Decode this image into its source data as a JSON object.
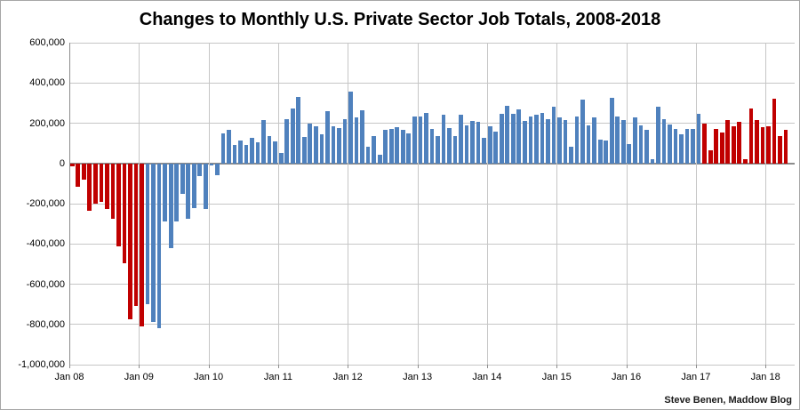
{
  "page": {
    "credit": "Steve Benen, Maddow Blog"
  },
  "chart_data": {
    "type": "bar",
    "title": "Changes to Monthly U.S. Private Sector Job Totals, 2008-2018",
    "xlabel": "",
    "ylabel": "",
    "ylim": [
      -1000000,
      600000
    ],
    "y_tick_step": 200000,
    "grid": true,
    "legend": false,
    "start_month": "Jan 2008",
    "end_month": "Apr 2018",
    "y_tick_labels": [
      "600,000",
      "400,000",
      "200,000",
      "0",
      "-200,000",
      "-400,000",
      "-600,000",
      "-800,000",
      "-1,000,000"
    ],
    "x_tick_labels": [
      "Jan 08",
      "Jan 09",
      "Jan 10",
      "Jan 11",
      "Jan 12",
      "Jan 13",
      "Jan 14",
      "Jan 15",
      "Jan 16",
      "Jan 17",
      "Jan 18"
    ],
    "bar_colors": {
      "red": "#c00000",
      "blue": "#4f81bd"
    },
    "segments": [
      {
        "color": "#c00000",
        "from": 0,
        "to": 12
      },
      {
        "color": "#4f81bd",
        "from": 13,
        "to": 108
      },
      {
        "color": "#c00000",
        "from": 109,
        "to": 123
      }
    ],
    "values": [
      -15000,
      -118000,
      -81000,
      -236000,
      -199000,
      -192000,
      -228000,
      -273000,
      -413000,
      -494000,
      -774000,
      -710000,
      -810000,
      -700000,
      -790000,
      -820000,
      -290000,
      -420000,
      -290000,
      -150000,
      -275000,
      -220000,
      -65000,
      -225000,
      -10000,
      -60000,
      150000,
      165000,
      90000,
      115000,
      90000,
      125000,
      105000,
      215000,
      135000,
      110000,
      50000,
      220000,
      275000,
      330000,
      130000,
      200000,
      185000,
      145000,
      260000,
      185000,
      175000,
      220000,
      355000,
      230000,
      265000,
      85000,
      135000,
      45000,
      165000,
      170000,
      180000,
      165000,
      150000,
      235000,
      235000,
      250000,
      170000,
      135000,
      240000,
      175000,
      135000,
      240000,
      190000,
      210000,
      205000,
      125000,
      185000,
      160000,
      245000,
      285000,
      245000,
      270000,
      210000,
      235000,
      240000,
      250000,
      220000,
      280000,
      230000,
      215000,
      85000,
      235000,
      315000,
      190000,
      230000,
      120000,
      115000,
      325000,
      235000,
      215000,
      95000,
      230000,
      190000,
      165000,
      20000,
      280000,
      220000,
      195000,
      170000,
      145000,
      170000,
      170000,
      245000,
      200000,
      65000,
      170000,
      155000,
      215000,
      185000,
      205000,
      20000,
      275000,
      215000,
      180000,
      185000,
      320000,
      135000,
      165000
    ]
  }
}
